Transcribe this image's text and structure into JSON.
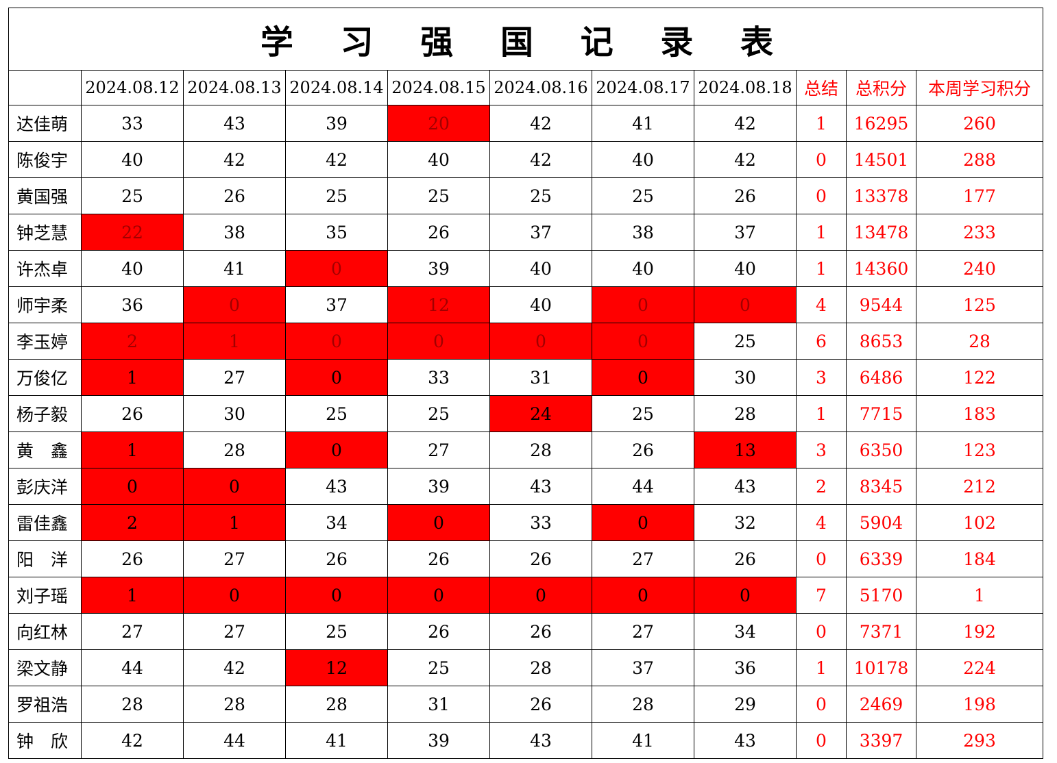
{
  "title": "学 习 强 国 记 录 表",
  "headers": {
    "blank": "",
    "dates": [
      "2024.08.12",
      "2024.08.13",
      "2024.08.14",
      "2024.08.15",
      "2024.08.16",
      "2024.08.17",
      "2024.08.18"
    ],
    "summary": "总结",
    "total_points": "总积分",
    "week_points": "本周学习积分"
  },
  "colors": {
    "highlight": "#ff0000",
    "summary_text": "#ff0000",
    "dim_text": "#a10000"
  },
  "rows": [
    {
      "name": "达佳萌",
      "scores": [
        "33",
        "43",
        "39",
        "20",
        "42",
        "41",
        "42"
      ],
      "highlight": [
        false,
        false,
        false,
        true,
        false,
        false,
        false
      ],
      "dim": [
        false,
        false,
        false,
        true,
        false,
        false,
        false
      ],
      "summary": "1",
      "total": "16295",
      "week": "260"
    },
    {
      "name": "陈俊宇",
      "scores": [
        "40",
        "42",
        "42",
        "40",
        "42",
        "40",
        "42"
      ],
      "highlight": [
        false,
        false,
        false,
        false,
        false,
        false,
        false
      ],
      "dim": [
        false,
        false,
        false,
        false,
        false,
        false,
        false
      ],
      "summary": "0",
      "total": "14501",
      "week": "288"
    },
    {
      "name": "黄国强",
      "scores": [
        "25",
        "26",
        "25",
        "25",
        "25",
        "25",
        "26"
      ],
      "highlight": [
        false,
        false,
        false,
        false,
        false,
        false,
        false
      ],
      "dim": [
        false,
        false,
        false,
        false,
        false,
        false,
        false
      ],
      "summary": "0",
      "total": "13378",
      "week": "177"
    },
    {
      "name": "钟芝慧",
      "scores": [
        "22",
        "38",
        "35",
        "26",
        "37",
        "38",
        "37"
      ],
      "highlight": [
        true,
        false,
        false,
        false,
        false,
        false,
        false
      ],
      "dim": [
        true,
        false,
        false,
        false,
        false,
        false,
        false
      ],
      "summary": "1",
      "total": "13478",
      "week": "233"
    },
    {
      "name": "许杰卓",
      "scores": [
        "40",
        "41",
        "0",
        "39",
        "40",
        "40",
        "40"
      ],
      "highlight": [
        false,
        false,
        true,
        false,
        false,
        false,
        false
      ],
      "dim": [
        false,
        false,
        true,
        false,
        false,
        false,
        false
      ],
      "summary": "1",
      "total": "14360",
      "week": "240"
    },
    {
      "name": "师宇柔",
      "scores": [
        "36",
        "0",
        "37",
        "12",
        "40",
        "0",
        "0"
      ],
      "highlight": [
        false,
        true,
        false,
        true,
        false,
        true,
        true
      ],
      "dim": [
        false,
        true,
        false,
        true,
        false,
        true,
        true
      ],
      "summary": "4",
      "total": "9544",
      "week": "125"
    },
    {
      "name": "李玉婷",
      "scores": [
        "2",
        "1",
        "0",
        "0",
        "0",
        "0",
        "25"
      ],
      "highlight": [
        true,
        true,
        true,
        true,
        true,
        true,
        false
      ],
      "dim": [
        true,
        true,
        true,
        true,
        true,
        true,
        false
      ],
      "summary": "6",
      "total": "8653",
      "week": "28"
    },
    {
      "name": "万俊亿",
      "scores": [
        "1",
        "27",
        "0",
        "33",
        "31",
        "0",
        "30"
      ],
      "highlight": [
        true,
        false,
        true,
        false,
        false,
        true,
        false
      ],
      "dim": [
        false,
        false,
        false,
        false,
        false,
        false,
        false
      ],
      "summary": "3",
      "total": "6486",
      "week": "122"
    },
    {
      "name": "杨子毅",
      "scores": [
        "26",
        "30",
        "25",
        "25",
        "24",
        "25",
        "28"
      ],
      "highlight": [
        false,
        false,
        false,
        false,
        true,
        false,
        false
      ],
      "dim": [
        false,
        false,
        false,
        false,
        false,
        false,
        false
      ],
      "summary": "1",
      "total": "7715",
      "week": "183"
    },
    {
      "name": "黄　鑫",
      "scores": [
        "1",
        "28",
        "0",
        "27",
        "28",
        "26",
        "13"
      ],
      "highlight": [
        true,
        false,
        true,
        false,
        false,
        false,
        true
      ],
      "dim": [
        false,
        false,
        false,
        false,
        false,
        false,
        false
      ],
      "summary": "3",
      "total": "6350",
      "week": "123"
    },
    {
      "name": "彭庆洋",
      "scores": [
        "0",
        "0",
        "43",
        "39",
        "43",
        "44",
        "43"
      ],
      "highlight": [
        true,
        true,
        false,
        false,
        false,
        false,
        false
      ],
      "dim": [
        false,
        false,
        false,
        false,
        false,
        false,
        false
      ],
      "summary": "2",
      "total": "8345",
      "week": "212"
    },
    {
      "name": "雷佳鑫",
      "scores": [
        "2",
        "1",
        "34",
        "0",
        "33",
        "0",
        "32"
      ],
      "highlight": [
        true,
        true,
        false,
        true,
        false,
        true,
        false
      ],
      "dim": [
        false,
        false,
        false,
        false,
        false,
        false,
        false
      ],
      "summary": "4",
      "total": "5904",
      "week": "102"
    },
    {
      "name": "阳　洋",
      "scores": [
        "26",
        "27",
        "26",
        "26",
        "26",
        "27",
        "26"
      ],
      "highlight": [
        false,
        false,
        false,
        false,
        false,
        false,
        false
      ],
      "dim": [
        false,
        false,
        false,
        false,
        false,
        false,
        false
      ],
      "summary": "0",
      "total": "6339",
      "week": "184"
    },
    {
      "name": "刘子瑶",
      "scores": [
        "1",
        "0",
        "0",
        "0",
        "0",
        "0",
        "0"
      ],
      "highlight": [
        true,
        true,
        true,
        true,
        true,
        true,
        true
      ],
      "dim": [
        false,
        false,
        false,
        false,
        false,
        false,
        false
      ],
      "summary": "7",
      "total": "5170",
      "week": "1"
    },
    {
      "name": "向红林",
      "scores": [
        "27",
        "27",
        "25",
        "26",
        "26",
        "27",
        "34"
      ],
      "highlight": [
        false,
        false,
        false,
        false,
        false,
        false,
        false
      ],
      "dim": [
        false,
        false,
        false,
        false,
        false,
        false,
        false
      ],
      "summary": "0",
      "total": "7371",
      "week": "192"
    },
    {
      "name": "梁文静",
      "scores": [
        "44",
        "42",
        "12",
        "25",
        "28",
        "37",
        "36"
      ],
      "highlight": [
        false,
        false,
        true,
        false,
        false,
        false,
        false
      ],
      "dim": [
        false,
        false,
        false,
        false,
        false,
        false,
        false
      ],
      "summary": "1",
      "total": "10178",
      "week": "224"
    },
    {
      "name": "罗祖浩",
      "scores": [
        "28",
        "28",
        "28",
        "31",
        "26",
        "28",
        "29"
      ],
      "highlight": [
        false,
        false,
        false,
        false,
        false,
        false,
        false
      ],
      "dim": [
        false,
        false,
        false,
        false,
        false,
        false,
        false
      ],
      "summary": "0",
      "total": "2469",
      "week": "198"
    },
    {
      "name": "钟　欣",
      "scores": [
        "42",
        "44",
        "41",
        "39",
        "43",
        "41",
        "43"
      ],
      "highlight": [
        false,
        false,
        false,
        false,
        false,
        false,
        false
      ],
      "dim": [
        false,
        false,
        false,
        false,
        false,
        false,
        false
      ],
      "summary": "0",
      "total": "3397",
      "week": "293"
    }
  ]
}
